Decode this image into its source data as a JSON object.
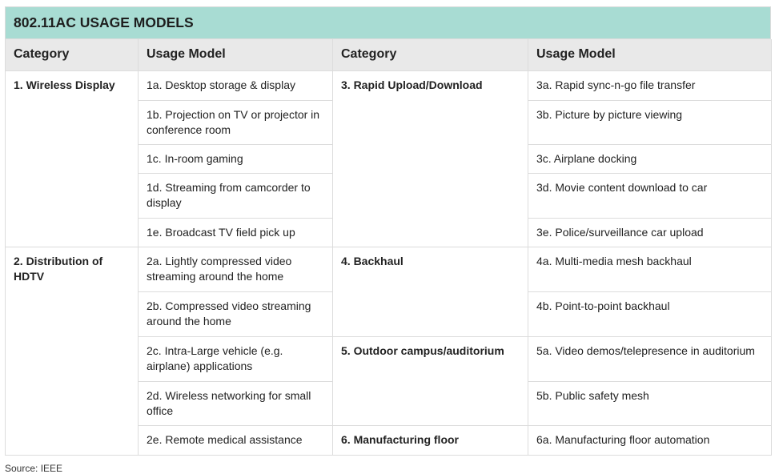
{
  "title": "802.11AC USAGE MODELS",
  "headers": [
    "Category",
    "Usage Model",
    "Category",
    "Usage Model"
  ],
  "left": [
    {
      "category": "1. Wireless Display",
      "models": [
        "1a. Desktop storage & display",
        "1b. Projection on TV or projector in conference room",
        "1c. In-room gaming",
        "1d. Streaming from camcorder to display",
        "1e. Broadcast TV field pick up"
      ]
    },
    {
      "category": "2. Distribution of HDTV",
      "models": [
        "2a. Lightly compressed video streaming around the home",
        "2b. Compressed video streaming around the home",
        "2c. Intra-Large vehicle (e.g. airplane) applications",
        "2d. Wireless networking for small office",
        "2e. Remote medical assistance"
      ]
    }
  ],
  "right": [
    {
      "category": "3. Rapid Upload/Download",
      "models": [
        "3a. Rapid sync-n-go file transfer",
        "3b. Picture by picture viewing",
        "3c. Airplane docking",
        "3d. Movie content download to car",
        "3e. Police/surveillance car upload"
      ]
    },
    {
      "category": "4. Backhaul",
      "models": [
        "4a. Multi-media mesh backhaul",
        "4b. Point-to-point backhaul"
      ]
    },
    {
      "category": "5. Outdoor campus/auditorium",
      "models": [
        "5a. Video demos/telepresence in auditorium",
        "5b. Public safety mesh"
      ]
    },
    {
      "category": "6. Manufacturing floor",
      "models": [
        "6a. Manufacturing floor automation"
      ]
    }
  ],
  "source": "Source: IEEE",
  "colors": {
    "title_bg": "#a8dcd3",
    "header_bg": "#e9e9e9"
  }
}
